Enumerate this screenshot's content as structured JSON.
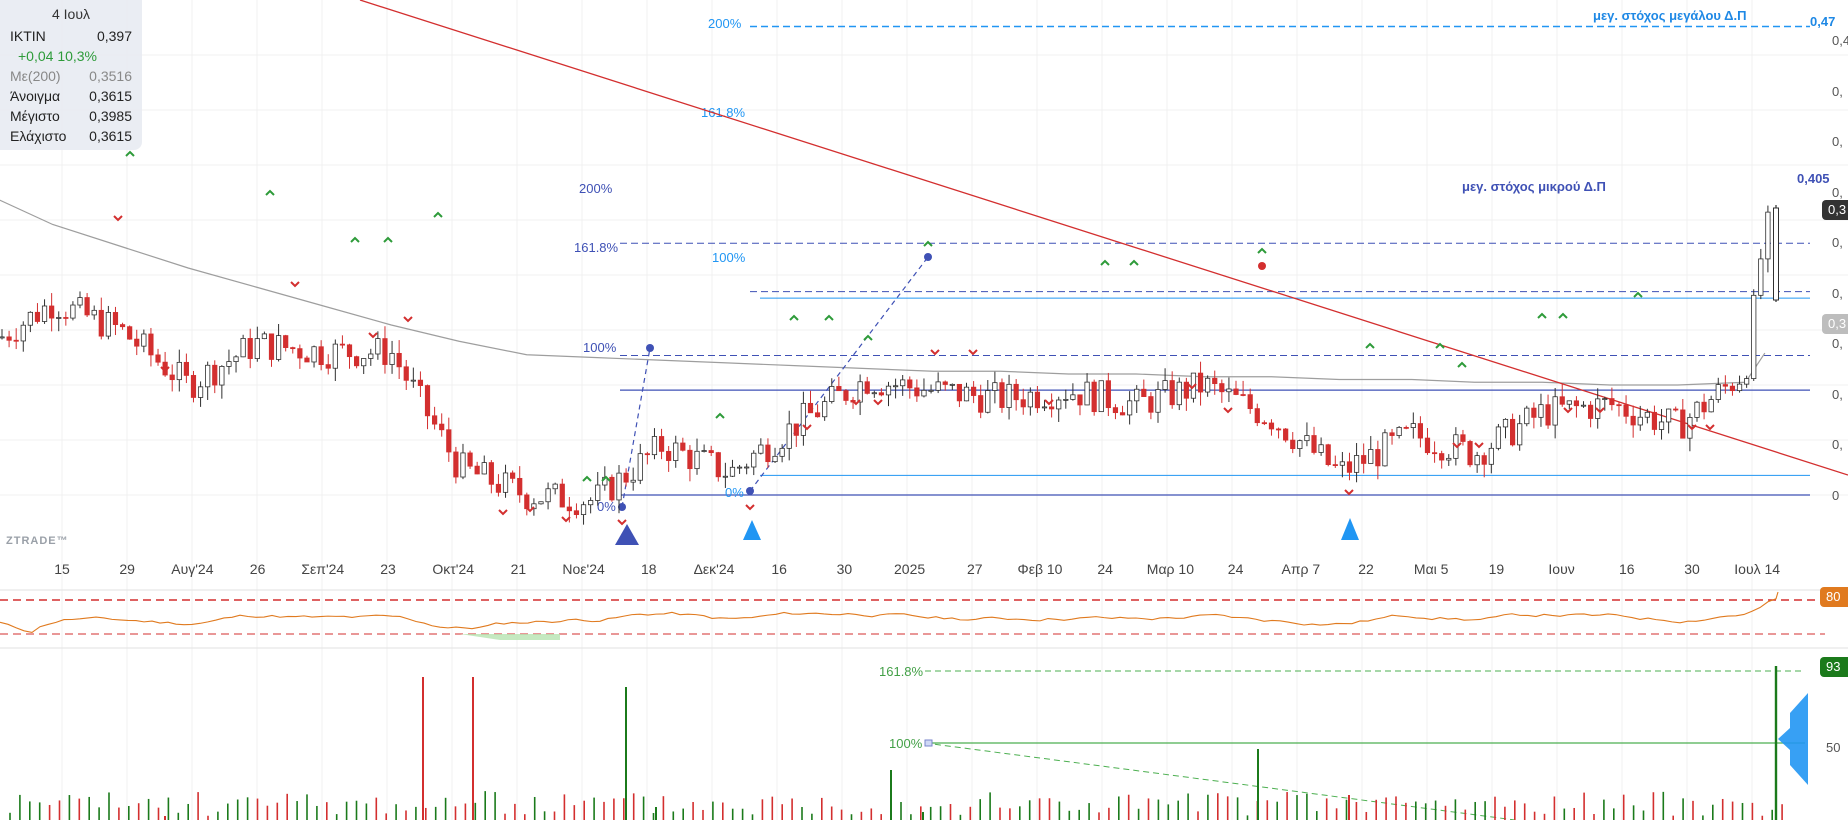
{
  "tooltip": {
    "date": "4 Ιουλ",
    "symbol": "IKTIN",
    "last": "0,397",
    "change": "+0,04 10,3%",
    "ma_label": "Με(200)",
    "ma_value": "0,3516",
    "open_label": "Άνοιγμα",
    "open_value": "0,3615",
    "high_label": "Μέγιστο",
    "high_value": "0,3985",
    "low_label": "Ελάχιστο",
    "low_value": "0,3615"
  },
  "watermark": "ZTRADE™",
  "x_labels": [
    "15",
    "29",
    "Αυγ'24",
    "26",
    "Σεπ'24",
    "23",
    "Οκτ'24",
    "21",
    "Νοε'24",
    "18",
    "Δεκ'24",
    "16",
    "30",
    "2025",
    "27",
    "Φεβ 10",
    "24",
    "Μαρ 10",
    "24",
    "Απρ 7",
    "22",
    "Μαι 5",
    "19",
    "Ιουν",
    "16",
    "30",
    "Ιουλ 14"
  ],
  "annotations": {
    "big_target": "μεγ. στόχος μεγάλου Δ.Π",
    "big_target_value": "0,47",
    "small_target": "μεγ. στόχος μικρού Δ.Π",
    "small_target_value": "0,405"
  },
  "fib_big": [
    "200%",
    "161.8%"
  ],
  "fib_small": [
    "200%",
    "161.8%",
    "100%",
    "0%"
  ],
  "fib_inner": [
    "100%",
    "0%"
  ],
  "right_axis": {
    "price_tag": "0,3",
    "ma_tag": "0,3",
    "ticks": [
      "0,4",
      "0,",
      "0,",
      "0,",
      "0,",
      "0,",
      "0,",
      "0,",
      "0,",
      "0"
    ],
    "rsi_tag": "80",
    "vol_tag": "93",
    "vol_tick": "50"
  },
  "volume_fib": [
    "161.8%",
    "100%"
  ],
  "colors": {
    "up": "#2f2f2f",
    "down": "#d32f2f",
    "ma": "#9e9e9e",
    "trend": "#d32f2f",
    "fib": "#3f51b5",
    "fib_light": "#2196f3",
    "rsi": "#e07a1f",
    "vol_up": "#1b7a1b",
    "vol_down": "#d32f2f",
    "vol_fib": "#4caf50",
    "arrow_big": "#3f51b5",
    "arrow_small": "#2196f3"
  },
  "chart_data": {
    "type": "candlestick",
    "x": [
      "2024-07-04",
      "2024-07-15",
      "2024-07-29",
      "2024-08-12",
      "2024-08-26",
      "2024-09-09",
      "2024-09-23",
      "2024-10-07",
      "2024-10-21",
      "2024-11-04",
      "2024-11-18",
      "2024-12-02",
      "2024-12-16",
      "2024-12-30",
      "2025-01-13",
      "2025-01-27",
      "2025-02-10",
      "2025-02-24",
      "2025-03-10",
      "2025-03-24",
      "2025-04-07",
      "2025-04-22",
      "2025-05-05",
      "2025-05-19",
      "2025-06-02",
      "2025-06-16",
      "2025-06-30",
      "2025-07-04"
    ],
    "close": [
      0.357,
      0.37,
      0.36,
      0.34,
      0.355,
      0.352,
      0.352,
      0.31,
      0.3,
      0.298,
      0.318,
      0.308,
      0.326,
      0.342,
      0.338,
      0.335,
      0.338,
      0.333,
      0.34,
      0.328,
      0.308,
      0.322,
      0.315,
      0.33,
      0.333,
      0.325,
      0.345,
      0.397
    ],
    "ma200": [
      0.4,
      0.392,
      0.385,
      0.378,
      0.372,
      0.366,
      0.36,
      0.355,
      0.351,
      0.35,
      0.349,
      0.348,
      0.347,
      0.346,
      0.345,
      0.345,
      0.344,
      0.344,
      0.343,
      0.343,
      0.342,
      0.342,
      0.341,
      0.341,
      0.34,
      0.34,
      0.341,
      0.3516
    ],
    "trendline": {
      "from": [
        "2024-07-12",
        0.432
      ],
      "to": [
        "2025-07-14",
        0.3
      ]
    },
    "fib_levels_big": {
      "0%": 0.3,
      "100%": 0.33,
      "161.8%": 0.3885,
      "200%": 0.425,
      "target": 0.47
    },
    "fib_levels_small": {
      "0%": 0.3035,
      "100%": 0.3425,
      "161.8%": 0.366,
      "200%": 0.38,
      "target": 0.405
    },
    "rsi_levels": [
      80,
      30
    ],
    "volume_peak": 93
  }
}
